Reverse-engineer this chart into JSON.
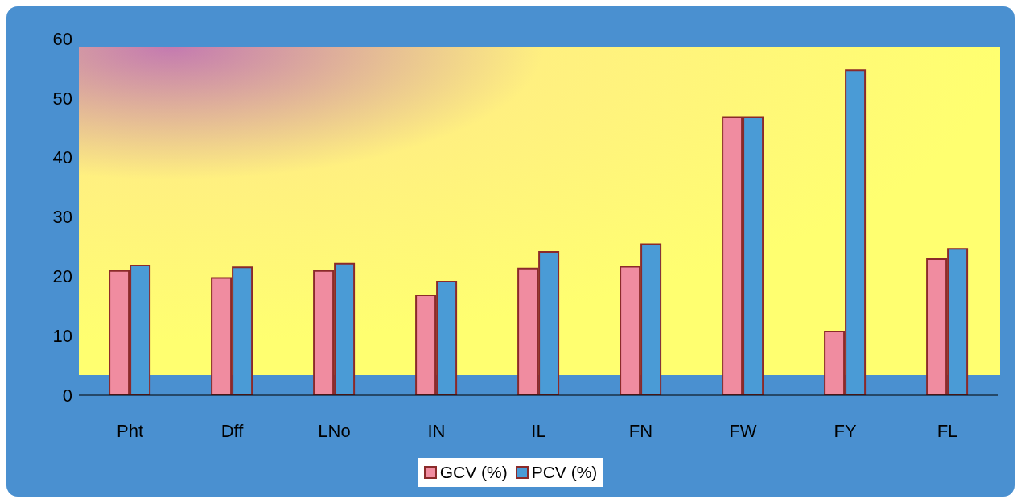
{
  "chart_data": {
    "type": "bar",
    "categories": [
      "Pht",
      "Dff",
      "LNo",
      "IN",
      "IL",
      "FN",
      "FW",
      "FY",
      "FL"
    ],
    "series": [
      {
        "name": "GCV (%)",
        "color": "#f08ca0",
        "values": [
          20.9,
          19.7,
          20.9,
          16.8,
          21.3,
          21.6,
          46.8,
          10.7,
          22.9
        ]
      },
      {
        "name": "PCV (%)",
        "color": "#4a9bd6",
        "values": [
          21.8,
          21.5,
          22.1,
          19.1,
          24.1,
          25.4,
          46.8,
          54.7,
          24.6
        ]
      }
    ],
    "ylim": [
      0,
      60
    ],
    "yticks": [
      0,
      10,
      20,
      30,
      40,
      50,
      60
    ],
    "grid": false,
    "legend": "bottom"
  }
}
